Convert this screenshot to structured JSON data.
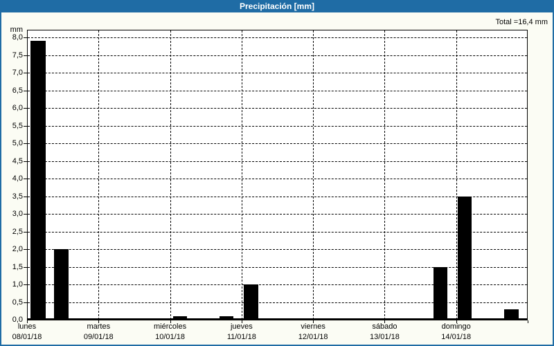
{
  "header": {
    "title": "Precipitación [mm]",
    "accent_color": "#1F6CA5"
  },
  "total_label": "Total =16,4 mm",
  "chart_data": {
    "type": "bar",
    "title": "Precipitación [mm]",
    "ylabel": "mm",
    "xlabel": "",
    "ylim": [
      0,
      8.2
    ],
    "ytick_step": 0.5,
    "yticks": [
      "0,0",
      "0,5",
      "1,0",
      "1,5",
      "2,0",
      "2,5",
      "3,0",
      "3,5",
      "4,0",
      "4,5",
      "5,0",
      "5,5",
      "6,0",
      "6,5",
      "7,0",
      "7,5",
      "8,0"
    ],
    "grid": true,
    "grid_style": "dashed",
    "legend": "none",
    "bar_color": "#000000",
    "total_mm": "16,4",
    "categories": [
      {
        "day": "lunes",
        "date": "08/01/18"
      },
      {
        "day": "martes",
        "date": "09/01/18"
      },
      {
        "day": "miércoles",
        "date": "10/01/18"
      },
      {
        "day": "jueves",
        "date": "11/01/18"
      },
      {
        "day": "viernes",
        "date": "12/01/18"
      },
      {
        "day": "sábado",
        "date": "13/01/18"
      },
      {
        "day": "domingo",
        "date": "14/01/18"
      }
    ],
    "bars": [
      {
        "day": "lunes",
        "value": 7.9,
        "x": 0.0055,
        "w": 0.0304
      },
      {
        "day": "lunes",
        "value": 2.0,
        "x": 0.0526,
        "w": 0.029
      },
      {
        "day": "miércoles",
        "value": 0.1,
        "x": 0.2905,
        "w": 0.0277
      },
      {
        "day": "miércoles",
        "value": 0.1,
        "x": 0.3845,
        "w": 0.0277
      },
      {
        "day": "jueves",
        "value": 1.0,
        "x": 0.4329,
        "w": 0.029
      },
      {
        "day": "sábado",
        "value": 1.5,
        "x": 0.8133,
        "w": 0.0277
      },
      {
        "day": "domingo",
        "value": 3.5,
        "x": 0.8617,
        "w": 0.0277
      },
      {
        "day": "domingo",
        "value": 0.3,
        "x": 0.9544,
        "w": 0.029
      }
    ]
  }
}
